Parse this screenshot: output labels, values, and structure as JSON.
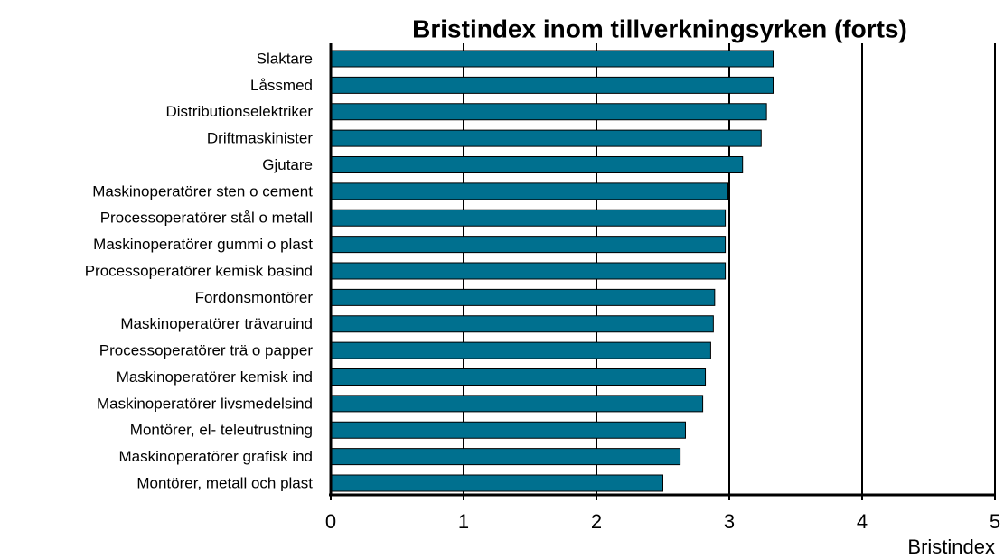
{
  "chart_data": {
    "type": "bar",
    "orientation": "horizontal",
    "title": "Bristindex inom tillverkningsyrken (forts)",
    "x_label": "Bristindex",
    "categories": [
      "Slaktare",
      "Låssmed",
      "Distributionselektriker",
      "Driftmaskinister",
      "Gjutare",
      "Maskinoperatörer sten o cement",
      "Processoperatörer stål o metall",
      "Maskinoperatörer gummi o plast",
      "Processoperatörer kemisk basind",
      "Fordonsmontörer",
      "Maskinoperatörer trävaruind",
      "Processoperatörer trä o papper",
      "Maskinoperatörer kemisk ind",
      "Maskinoperatörer livsmedelsind",
      "Montörer, el- teleutrustning",
      "Maskinoperatörer grafisk ind",
      "Montörer, metall och plast"
    ],
    "values": [
      3.33,
      3.33,
      3.28,
      3.24,
      3.1,
      2.99,
      2.97,
      2.97,
      2.97,
      2.89,
      2.88,
      2.86,
      2.82,
      2.8,
      2.67,
      2.63,
      2.5
    ],
    "color": "#00708f",
    "xlim": [
      0,
      5
    ],
    "xticks": [
      0,
      1,
      2,
      3,
      4,
      5
    ],
    "grid": true
  }
}
